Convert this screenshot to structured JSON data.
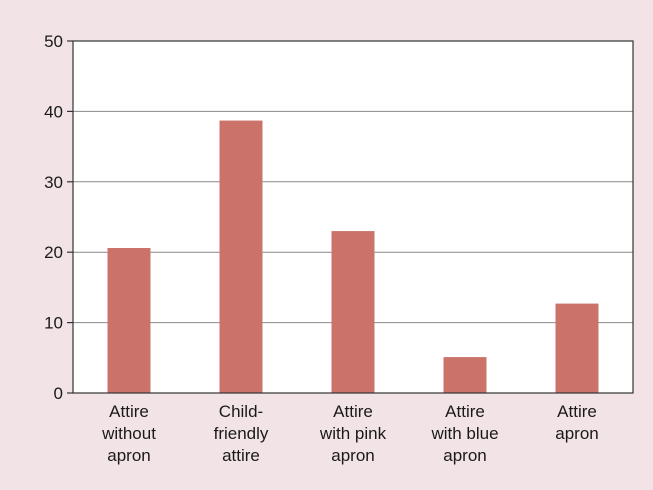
{
  "colors": {
    "bar": "#cb736b",
    "panel_background": "#f2e4e6",
    "plot_background": "#ffffff",
    "gridline": "#8a8a8a",
    "axis": "#333333",
    "text": "#1a1a1a"
  },
  "chart_data": {
    "type": "bar",
    "title": "",
    "xlabel": "",
    "ylabel": "",
    "categories": [
      "Attire without apron",
      "Child-friendly attire",
      "Attire with pink apron",
      "Attire with blue apron",
      "Attire apron"
    ],
    "category_label_lines": [
      [
        "Attire",
        "without",
        "apron"
      ],
      [
        "Child-",
        "friendly",
        "attire"
      ],
      [
        "Attire",
        "with pink",
        "apron"
      ],
      [
        "Attire",
        "with blue",
        "apron"
      ],
      [
        "Attire",
        "apron"
      ]
    ],
    "values": [
      20.6,
      38.7,
      23.0,
      5.1,
      12.7
    ],
    "ylim": [
      0,
      50
    ],
    "yticks": [
      0,
      10,
      20,
      30,
      40,
      50
    ],
    "grid": true,
    "legend": "none"
  }
}
